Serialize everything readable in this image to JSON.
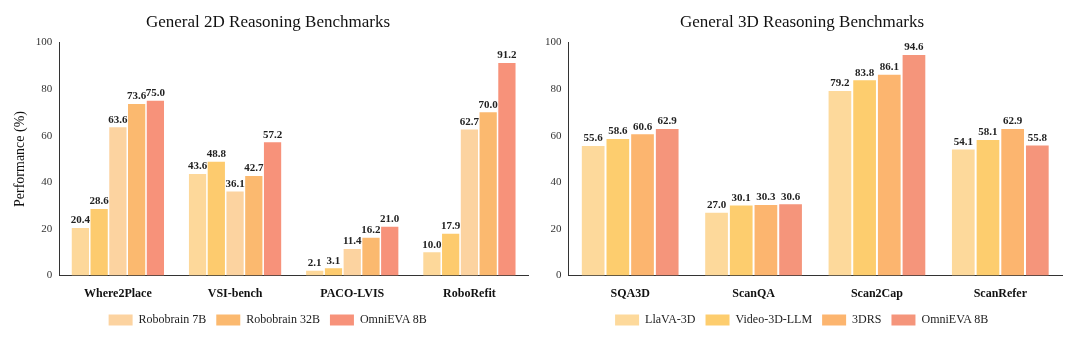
{
  "chart_data": [
    {
      "type": "bar",
      "title": "General 2D Reasoning Benchmarks",
      "ylabel": "Performance (%)",
      "categories": [
        "Where2Place",
        "VSI-bench",
        "PACO-LVIS",
        "RoboRefit"
      ],
      "ylim": [
        0,
        100
      ],
      "yticks": [
        0,
        20,
        40,
        60,
        80,
        100
      ],
      "legend": "bottom",
      "series": [
        {
          "color": "#fdd89a",
          "values": [
            20.4,
            43.6,
            2.1,
            10
          ],
          "value_labels": [
            "20.4",
            "43.6",
            "2.1",
            "10.0"
          ]
        },
        {
          "color": "#fdcb6e",
          "values": [
            28.6,
            48.8,
            3.1,
            17.9
          ],
          "value_labels": [
            "28.6",
            "48.8",
            "3.1",
            "17.9"
          ]
        },
        {
          "name": "Robobrain 7B",
          "color": "#fcd3a0",
          "values": [
            63.6,
            36.1,
            11.4,
            62.7
          ],
          "value_labels": [
            "63.6",
            "36.1",
            "11.4",
            "62.7"
          ]
        },
        {
          "name": "Robobrain 32B",
          "color": "#fbb96f",
          "values": [
            73.6,
            42.7,
            16.2,
            70
          ],
          "value_labels": [
            "73.6",
            "42.7",
            "16.2",
            "70.0"
          ]
        },
        {
          "name": "OmniEVA 8B",
          "color": "#f7927a",
          "values": [
            75,
            57.2,
            21,
            91.2
          ],
          "value_labels": [
            "75.0",
            "57.2",
            "21.0",
            "91.2"
          ]
        }
      ]
    },
    {
      "type": "bar",
      "title": "General 3D Reasoning Benchmarks",
      "categories": [
        "SQA3D",
        "ScanQA",
        "Scan2Cap",
        "ScanRefer"
      ],
      "ylim": [
        0,
        100
      ],
      "yticks": [
        0,
        20,
        40,
        60,
        80,
        100
      ],
      "legend": "bottom",
      "series": [
        {
          "name": "LlaVA-3D",
          "color": "#fdd99b",
          "values": [
            55.6,
            27,
            79.2,
            54.1
          ],
          "value_labels": [
            "55.6",
            "27.0",
            "79.2",
            "54.1"
          ]
        },
        {
          "name": "Video-3D-LLM",
          "color": "#fdcd6e",
          "values": [
            58.6,
            30.1,
            83.8,
            58.1
          ],
          "value_labels": [
            "58.6",
            "30.1",
            "83.8",
            "58.1"
          ]
        },
        {
          "name": "3DRS",
          "color": "#fcb56f",
          "values": [
            60.6,
            30.3,
            86.1,
            62.9
          ],
          "value_labels": [
            "60.6",
            "30.3",
            "86.1",
            "62.9"
          ]
        },
        {
          "name": "OmniEVA 8B",
          "color": "#f5957b",
          "values": [
            62.9,
            30.6,
            94.6,
            55.8
          ],
          "value_labels": [
            "62.9",
            "30.6",
            "94.6",
            "55.8"
          ]
        }
      ]
    }
  ]
}
